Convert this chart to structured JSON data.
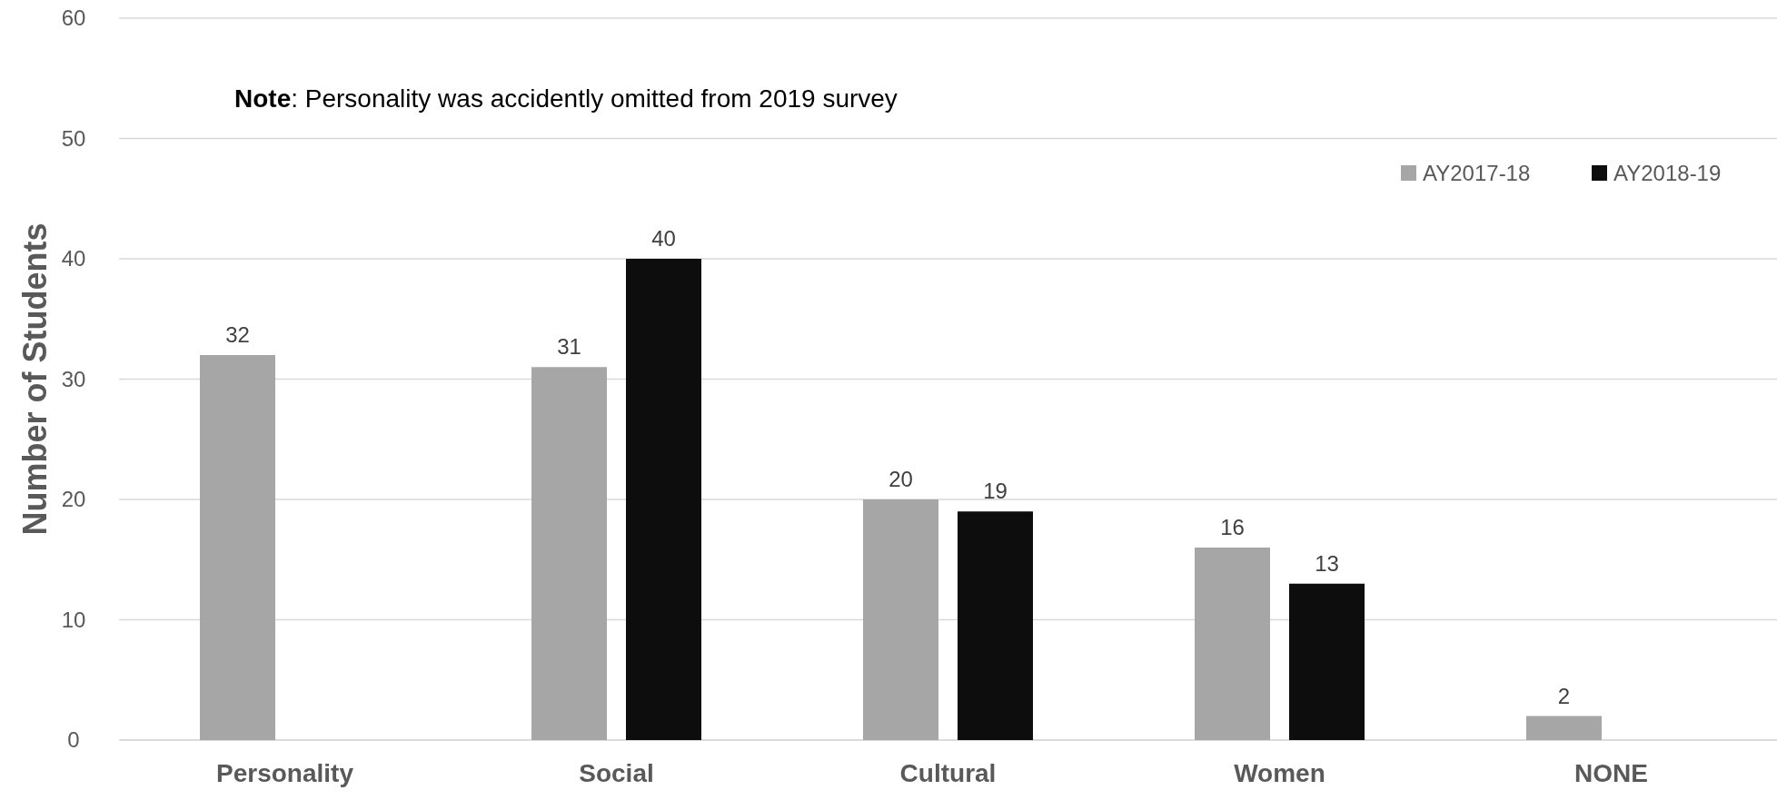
{
  "chart_data": {
    "type": "bar",
    "ylabel": "Number of Students",
    "categories": [
      "Personality",
      "Social",
      "Cultural",
      "Women",
      "NONE"
    ],
    "series": [
      {
        "name": "AY2017-18",
        "color": "#a6a6a6",
        "values": [
          32,
          31,
          20,
          16,
          2
        ]
      },
      {
        "name": "AY2018-19",
        "color": "#0d0d0d",
        "values": [
          null,
          40,
          19,
          13,
          null
        ]
      }
    ],
    "ylim": [
      0,
      60
    ],
    "yticks": [
      0,
      10,
      20,
      30,
      40,
      50,
      60
    ],
    "grid": "y",
    "legend": "top right",
    "data_labels": true,
    "annotations": [
      "Note: Personality was accidently omitted from 2019 survey"
    ]
  }
}
